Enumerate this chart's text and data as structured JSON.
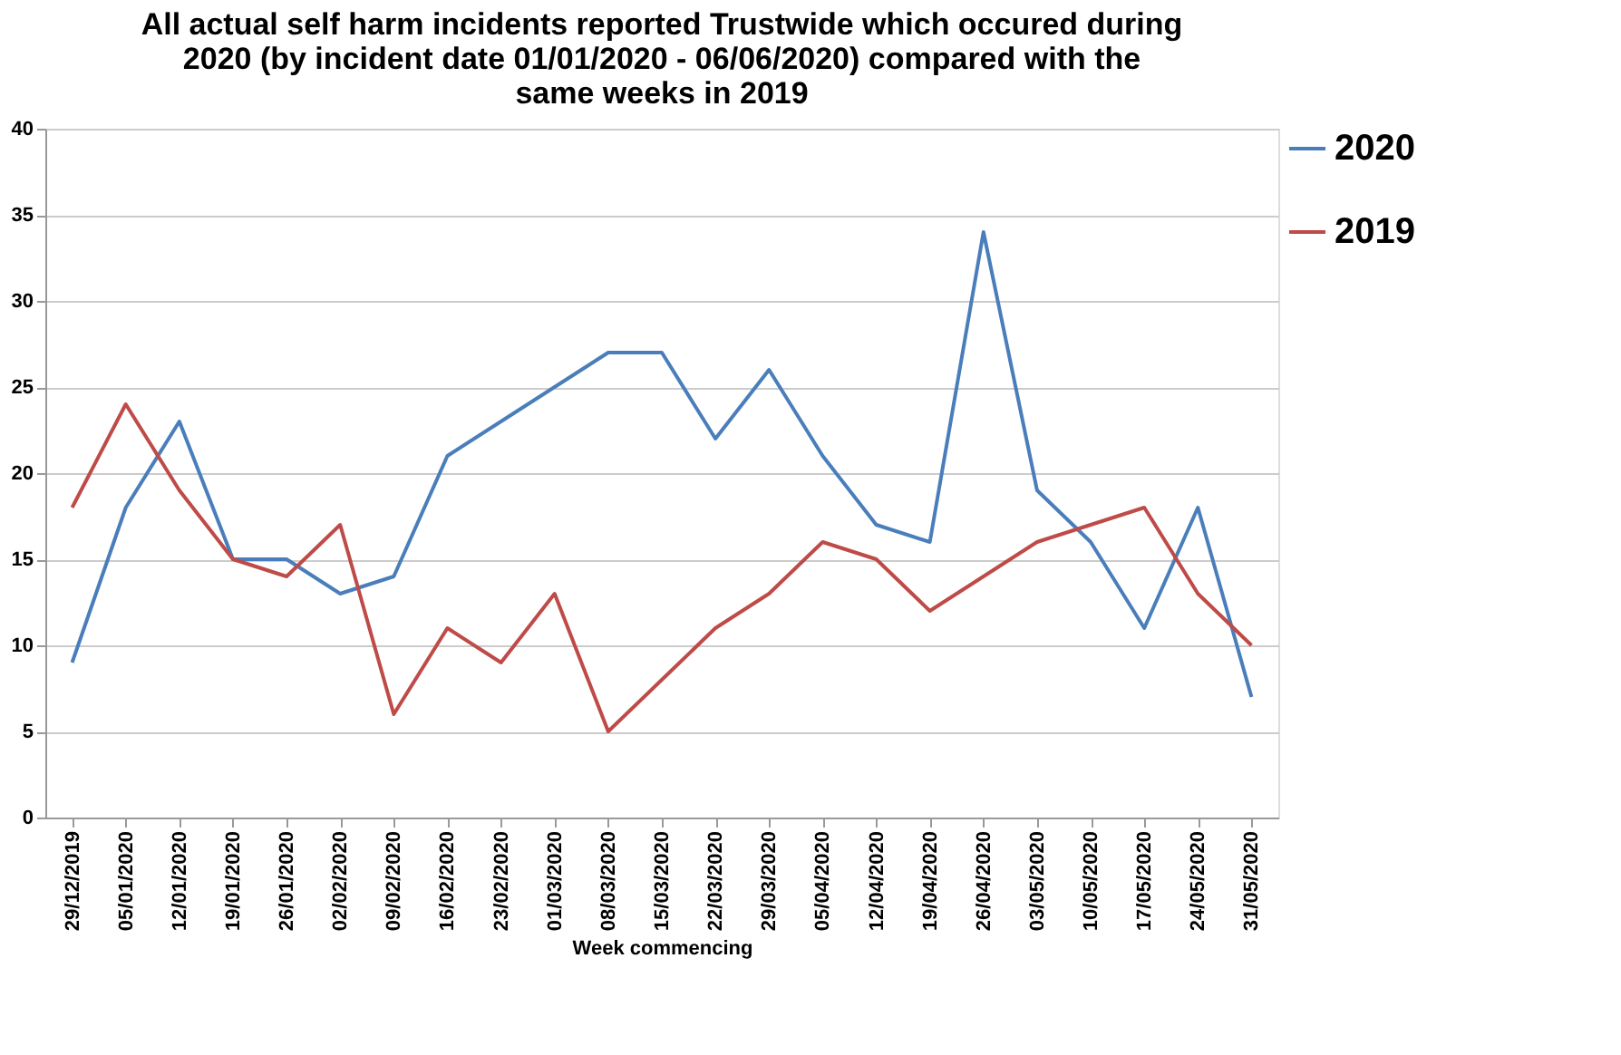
{
  "chart_data": {
    "type": "line",
    "title": "All actual self harm incidents reported Trustwide which occured during\n2020  (by incident date 01/01/2020 - 06/06/2020) compared with the\nsame weeks in 2019",
    "xlabel": "Week commencing",
    "categories": [
      "29/12/2019",
      "05/01/2020",
      "12/01/2020",
      "19/01/2020",
      "26/01/2020",
      "02/02/2020",
      "09/02/2020",
      "16/02/2020",
      "23/02/2020",
      "01/03/2020",
      "08/03/2020",
      "15/03/2020",
      "22/03/2020",
      "29/03/2020",
      "05/04/2020",
      "12/04/2020",
      "19/04/2020",
      "26/04/2020",
      "03/05/2020",
      "10/05/2020",
      "17/05/2020",
      "24/05/2020",
      "31/05/2020"
    ],
    "series": [
      {
        "name": "2020",
        "color": "#4a7ebb",
        "values": [
          9,
          18,
          23,
          15,
          15,
          13,
          14,
          21,
          23,
          25,
          27,
          27,
          22,
          26,
          21,
          17,
          16,
          34,
          19,
          16,
          11,
          18,
          7
        ]
      },
      {
        "name": "2019",
        "color": "#be4b48",
        "values": [
          18,
          24,
          19,
          15,
          14,
          17,
          6,
          11,
          9,
          13,
          5,
          8,
          11,
          13,
          16,
          15,
          12,
          14,
          16,
          17,
          18,
          13,
          10
        ]
      }
    ],
    "ylim": [
      0,
      40
    ],
    "yticks": [
      0,
      5,
      10,
      15,
      20,
      25,
      30,
      35,
      40
    ],
    "grid": "y",
    "legend": "right",
    "marker": "none",
    "line_style": "solid"
  }
}
